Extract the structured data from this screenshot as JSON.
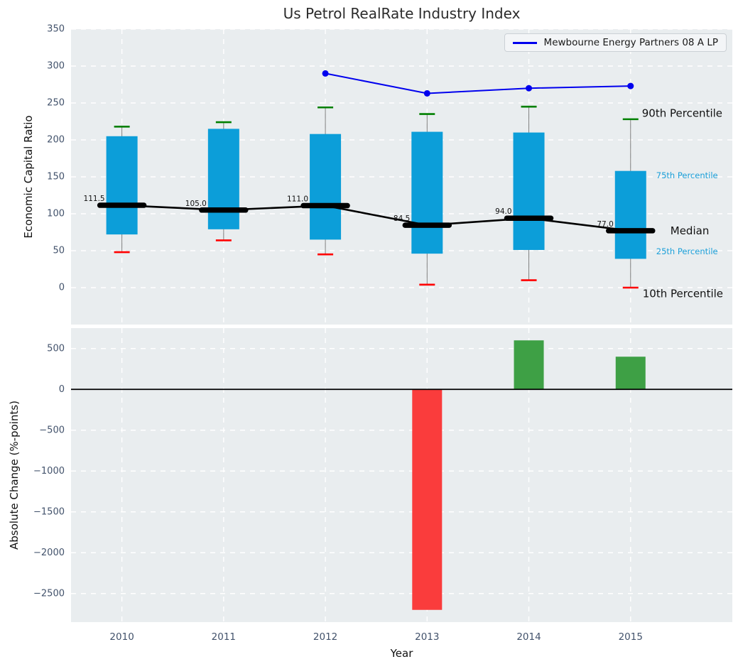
{
  "title": "Us Petrol RealRate Industry Index",
  "colors": {
    "panel_bg": "#e9edef",
    "grid": "#ffffff",
    "box_fill": "#0c9ed9",
    "whisker": "#7f7f7f",
    "cap_top": "#008000",
    "cap_bottom": "#ff0000",
    "median": "#000000",
    "company_line": "#0000ee",
    "bar_negative": "#fa3c3c",
    "bar_positive": "#3ea045",
    "tick_label": "#42526b",
    "annotation_small": "#1a9fd9",
    "annotation_large": "#111111"
  },
  "chart_data": [
    {
      "type": "boxplot+line",
      "title": "Us Petrol RealRate Industry Index",
      "ylabel": "Economic Capital Ratio",
      "ylim": [
        -50,
        350
      ],
      "yticks": [
        0,
        50,
        100,
        150,
        200,
        250,
        300,
        350
      ],
      "categories": [
        "2010",
        "2011",
        "2012",
        "2013",
        "2014",
        "2015"
      ],
      "grid": true,
      "boxes": [
        {
          "year": "2010",
          "p10": 48,
          "p25": 72,
          "median": 111.5,
          "p75": 205,
          "p90": 218,
          "median_label": "111.5"
        },
        {
          "year": "2011",
          "p10": 64,
          "p25": 79,
          "median": 105.0,
          "p75": 215,
          "p90": 224,
          "median_label": "105.0"
        },
        {
          "year": "2012",
          "p10": 45,
          "p25": 65,
          "median": 111.0,
          "p75": 208,
          "p90": 244,
          "median_label": "111.0"
        },
        {
          "year": "2013",
          "p10": 4,
          "p25": 46,
          "median": 84.5,
          "p75": 211,
          "p90": 235,
          "median_label": "84.5"
        },
        {
          "year": "2014",
          "p10": 10,
          "p25": 51,
          "median": 94.0,
          "p75": 210,
          "p90": 245,
          "median_label": "94.0"
        },
        {
          "year": "2015",
          "p10": 0,
          "p25": 39,
          "median": 77.0,
          "p75": 158,
          "p90": 228,
          "median_label": "77.0"
        }
      ],
      "series_line": {
        "name": "Mewbourne Energy Partners 08 A LP",
        "x": [
          "2012",
          "2013",
          "2014",
          "2015"
        ],
        "y": [
          290,
          263,
          270,
          273
        ]
      },
      "legend_position": "upper right",
      "annotations": [
        {
          "label": "90th Percentile",
          "value": 236,
          "style": "large"
        },
        {
          "label": "75th Percentile",
          "value": 152,
          "style": "small"
        },
        {
          "label": "Median",
          "value": 77,
          "style": "large"
        },
        {
          "label": "25th Percentile",
          "value": 49,
          "style": "small"
        },
        {
          "label": "10th Percentile",
          "value": -8,
          "style": "large"
        }
      ]
    },
    {
      "type": "bar",
      "ylabel": "Absolute Change (%-points)",
      "xlabel": "Year",
      "ylim": [
        -2850,
        750
      ],
      "yticks": [
        500,
        0,
        -500,
        -1000,
        -1500,
        -2000,
        -2500
      ],
      "categories": [
        "2010",
        "2011",
        "2012",
        "2013",
        "2014",
        "2015"
      ],
      "values": [
        0,
        0,
        0,
        -2700,
        600,
        400
      ],
      "zero_line": true,
      "grid": true
    }
  ]
}
